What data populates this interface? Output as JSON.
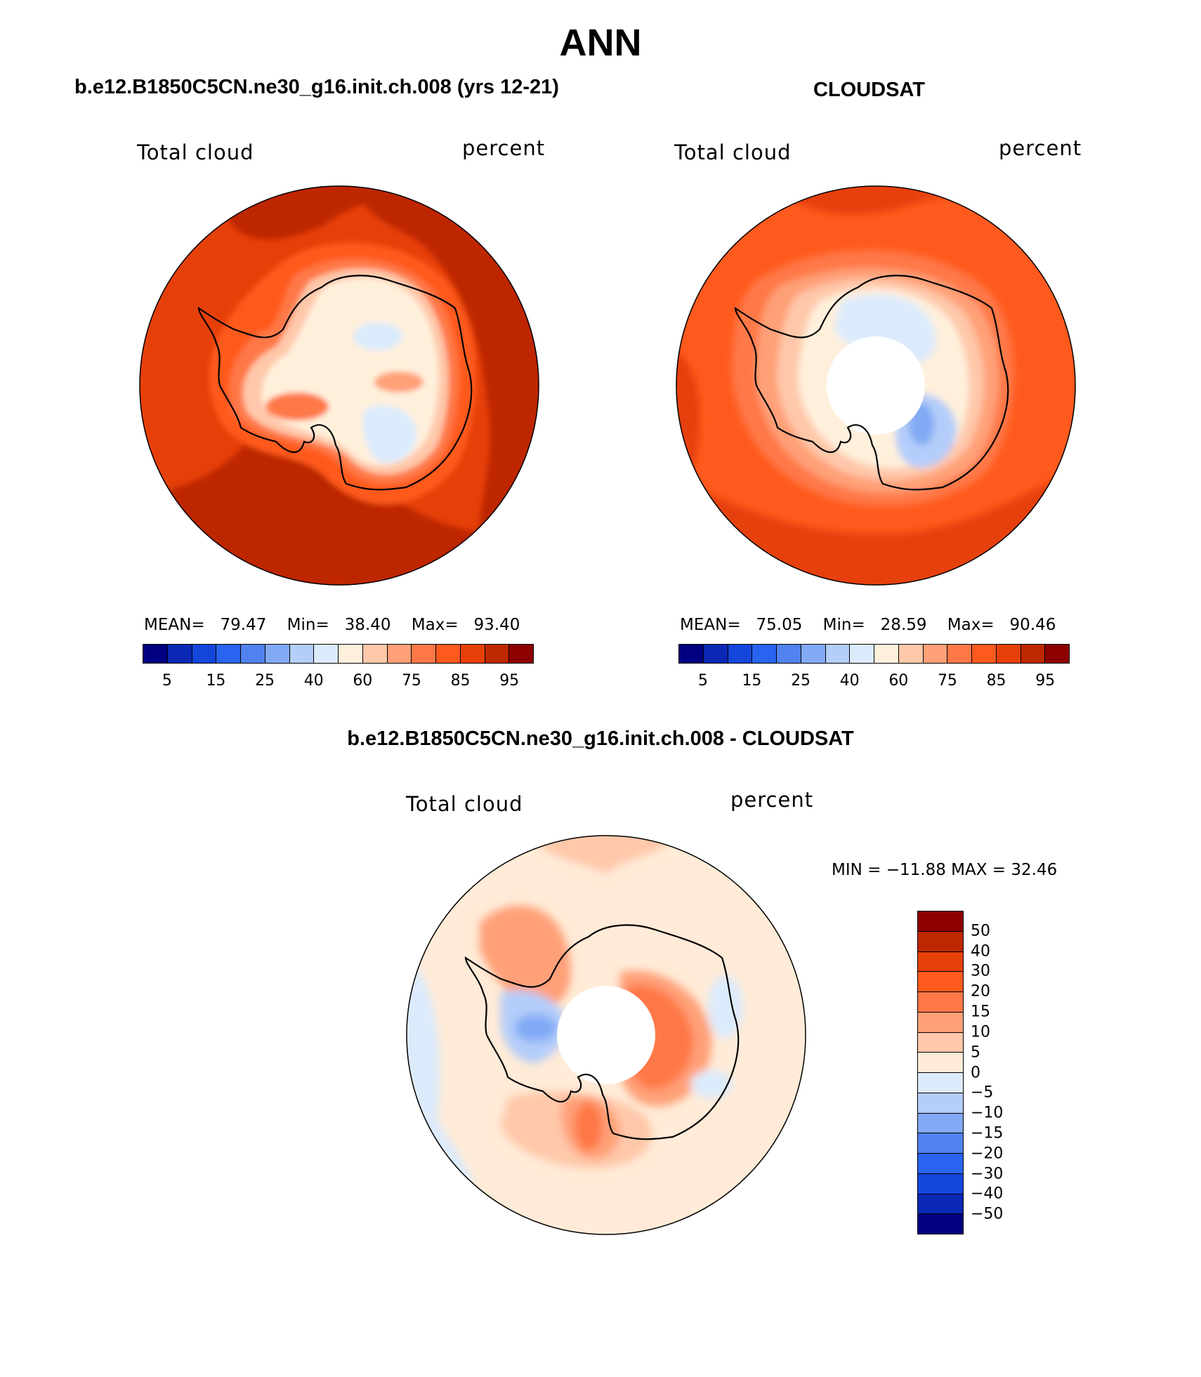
{
  "title": "ANN",
  "colors": {
    "abs_scale": [
      "#000080",
      "#0a28b4",
      "#1446dc",
      "#2864f0",
      "#5082f0",
      "#82aaf5",
      "#b4cdfa",
      "#dcebfc",
      "#fff0dc",
      "#ffc8aa",
      "#ffa078",
      "#ff7846",
      "#ff5a1e",
      "#e6400a",
      "#be2800",
      "#8c0000"
    ],
    "diff_scale": [
      "#8c0000",
      "#be2800",
      "#e6400a",
      "#ff5a1e",
      "#ff7846",
      "#ffa078",
      "#ffc8aa",
      "#ffebd7",
      "#dcebfc",
      "#b4cdfa",
      "#82aaf5",
      "#5082f0",
      "#2864f0",
      "#1446dc",
      "#0a28b4",
      "#000080"
    ]
  },
  "panels": {
    "model": {
      "title": "b.e12.B1850C5CN.ne30_g16.init.ch.008 (yrs 12-21)",
      "variable": "Total cloud",
      "units": "percent",
      "stats": {
        "mean_label": "MEAN=",
        "mean": "79.47",
        "min_label": "Min=",
        "min": "38.40",
        "max_label": "Max=",
        "max": "93.40"
      }
    },
    "obs": {
      "title": "CLOUDSAT",
      "variable": "Total cloud",
      "units": "percent",
      "stats": {
        "mean_label": "MEAN=",
        "mean": "75.05",
        "min_label": "Min=",
        "min": "28.59",
        "max_label": "Max=",
        "max": "90.46"
      }
    },
    "diff": {
      "title": "b.e12.B1850C5CN.ne30_g16.init.ch.008 - CLOUDSAT",
      "variable": "Total cloud",
      "units": "percent",
      "minmax": "MIN = −11.88 MAX =  32.46"
    }
  },
  "chart_data": [
    {
      "type": "heatmap",
      "projection": "south polar stereographic",
      "title": "b.e12.B1850C5CN.ne30_g16.init.ch.008 (yrs 12-21)",
      "field": "Total cloud",
      "units": "percent",
      "mean": 79.47,
      "min": 38.4,
      "max": 93.4,
      "colorbar_ticks": [
        "5",
        "15",
        "25",
        "40",
        "60",
        "75",
        "85",
        "95"
      ]
    },
    {
      "type": "heatmap",
      "projection": "south polar stereographic",
      "title": "CLOUDSAT",
      "field": "Total cloud",
      "units": "percent",
      "mean": 75.05,
      "min": 28.59,
      "max": 90.46,
      "missing_region": "pole (no data)",
      "colorbar_ticks": [
        "5",
        "15",
        "25",
        "40",
        "60",
        "75",
        "85",
        "95"
      ]
    },
    {
      "type": "heatmap",
      "projection": "south polar stereographic",
      "title": "b.e12.B1850C5CN.ne30_g16.init.ch.008 - CLOUDSAT",
      "field": "Total cloud",
      "units": "percent",
      "min": -11.88,
      "max": 32.46,
      "missing_region": "pole (no data)",
      "colorbar_ticks": [
        "50",
        "40",
        "30",
        "20",
        "15",
        "10",
        "5",
        "0",
        "−5",
        "−10",
        "−15",
        "−20",
        "−30",
        "−40",
        "−50"
      ]
    }
  ]
}
